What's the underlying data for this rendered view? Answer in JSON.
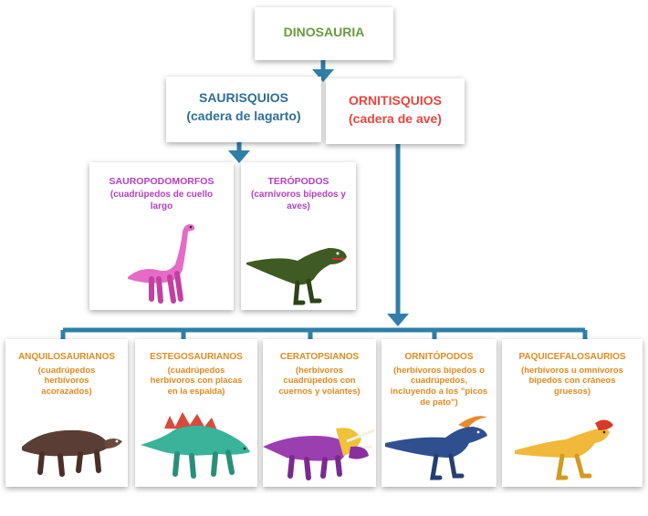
{
  "colors": {
    "root": "#6a9a3f",
    "saurischia": "#2f6f97",
    "ornithischia": "#e8453c",
    "saurischia_child": "#b340c0",
    "ornithischia_child": "#e08a1e",
    "connector": "#2f7fa8"
  },
  "root": {
    "title": "DINOSAURIA"
  },
  "saurischia": {
    "title": "SAURISQUIOS",
    "subtitle": "(cadera de lagarto)"
  },
  "ornithischia": {
    "title": "ORNITISQUIOS",
    "subtitle": "(cadera de ave)"
  },
  "sauropodomorphs": {
    "title": "SAUROPODOMORFOS",
    "subtitle": "(cuadrúpedos de cuello largo",
    "icon": "sauropod-icon"
  },
  "theropods": {
    "title": "TERÓPODOS",
    "subtitle": "(carnívoros bípedos y aves)",
    "icon": "theropod-icon"
  },
  "ornithischia_groups": [
    {
      "title": "ANQUILOSAURIANOS",
      "subtitle": "(cuadrúpedos herbívoros acorazados)",
      "icon": "ankylosaur-icon"
    },
    {
      "title": "ESTEGOSAURIANOS",
      "subtitle": "(cuadrúpedos herbívoros con placas en la espalda)",
      "icon": "stegosaur-icon"
    },
    {
      "title": "CERATOPSIANOS",
      "subtitle": "(herbívoros cuadrúpedos con cuernos y volantes)",
      "icon": "ceratopsian-icon"
    },
    {
      "title": "ORNITÓPODOS",
      "subtitle": "(herbívoros bípedos o cuadrúpedos, incluyendo a los \"picos de pato\")",
      "icon": "hadrosaur-icon"
    },
    {
      "title": "PAQUICEFALOSAURIOS",
      "subtitle": "(herbívoros u omnívoros bípedos con cráneos gruesos)",
      "icon": "pachycephalosaur-icon"
    }
  ]
}
